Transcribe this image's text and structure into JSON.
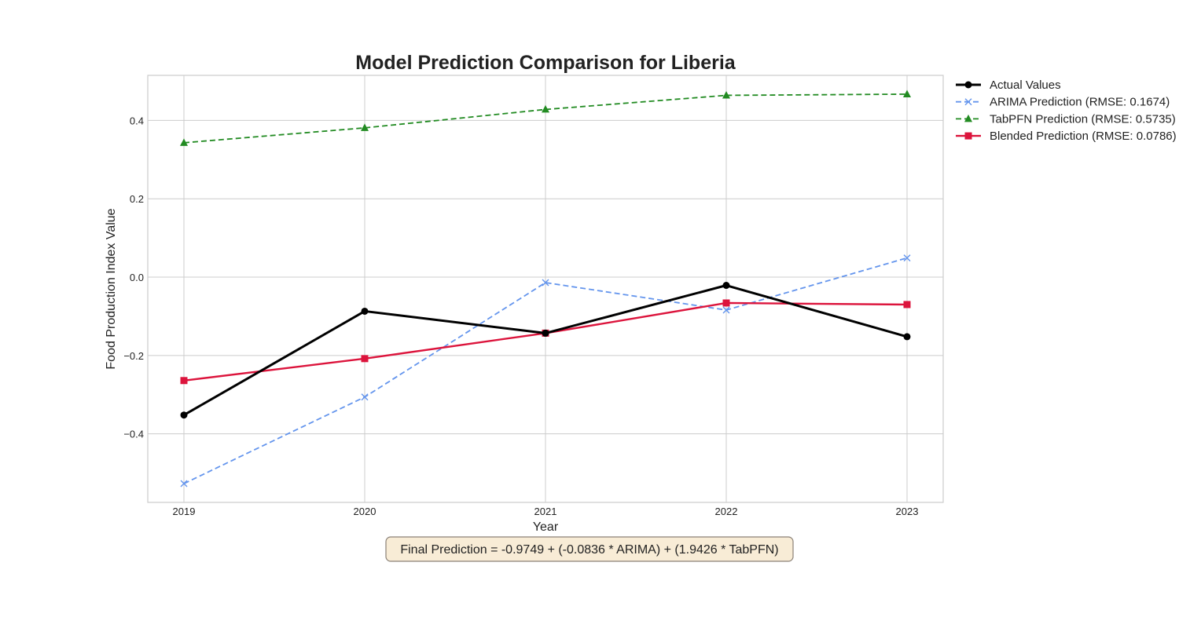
{
  "chart_data": {
    "type": "line",
    "title": "Model Prediction Comparison for Liberia",
    "xlabel": "Year",
    "ylabel": "Food Production Index Value",
    "x": [
      2019,
      2020,
      2021,
      2022,
      2023
    ],
    "xlim": [
      2018.8,
      2023.2
    ],
    "ylim": [
      -0.575,
      0.515
    ],
    "yticks": [
      -0.4,
      -0.2,
      0.0,
      0.2,
      0.4
    ],
    "ytick_labels": [
      "−0.4",
      "−0.2",
      "0.0",
      "0.2",
      "0.4"
    ],
    "grid": true,
    "legend_position": "outside-top-right",
    "series": [
      {
        "name": "Actual Values",
        "values": [
          -0.352,
          -0.087,
          -0.143,
          -0.021,
          -0.152
        ],
        "color": "#000000",
        "line_style": "solid",
        "marker": "circle"
      },
      {
        "name": "ARIMA Prediction (RMSE: 0.1674)",
        "values": [
          -0.527,
          -0.306,
          -0.014,
          -0.084,
          0.049
        ],
        "color": "#6495ED",
        "line_style": "dashed",
        "marker": "x"
      },
      {
        "name": "TabPFN Prediction (RMSE: 0.5735)",
        "values": [
          0.343,
          0.381,
          0.428,
          0.464,
          0.467
        ],
        "color": "#228B22",
        "line_style": "dashed",
        "marker": "triangle"
      },
      {
        "name": "Blended Prediction (RMSE: 0.0786)",
        "values": [
          -0.264,
          -0.208,
          -0.143,
          -0.066,
          -0.07
        ],
        "color": "#DC143C",
        "line_style": "solid",
        "marker": "square"
      }
    ],
    "annotation": "Final Prediction = -0.9749 + (-0.0836 * ARIMA) + (1.9426 * TabPFN)"
  }
}
